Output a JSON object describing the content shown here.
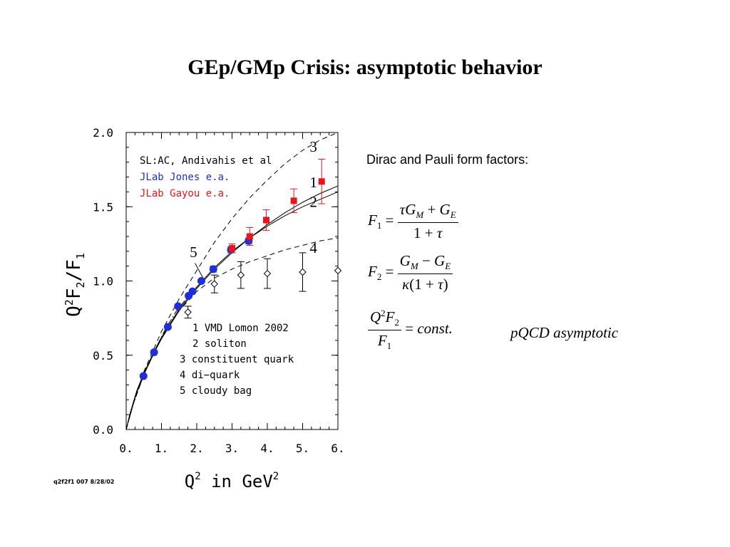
{
  "slide": {
    "title": "GEp/GMp Crisis: asymptotic behavior",
    "footnote": "q2f2f1 007 8/28/02"
  },
  "formulas": {
    "heading": "Dirac and Pauli form factors:",
    "asymptotic_label": "pQCD asymptotic"
  },
  "chart_data": {
    "type": "scatter",
    "xlabel": "Q",
    "xlabel_sup": "2",
    "xlabel_rest": " in GeV",
    "xlabel_sup2": "2",
    "ylabel_main": "Q",
    "ylabel_sup": "2",
    "ylabel_mid": "F",
    "ylabel_sub": "2",
    "ylabel_slash": "/F",
    "ylabel_sub2": "1",
    "xlim": [
      0,
      6
    ],
    "ylim": [
      0,
      2
    ],
    "x_ticks": [
      0,
      1,
      2,
      3,
      4,
      5,
      6
    ],
    "x_tick_labels": [
      "0.",
      "1.",
      "2.",
      "3.",
      "4.",
      "5.",
      "6."
    ],
    "y_ticks": [
      0,
      0.5,
      1.0,
      1.5,
      2.0
    ],
    "y_tick_labels": [
      "0.0",
      "0.5",
      "1.0",
      "1.5",
      "2.0"
    ],
    "legend": [
      {
        "label": "SL:AC, Andivahis et al",
        "color": "#000000"
      },
      {
        "label": "JLab Jones e.a.",
        "color": "#1f2fd8"
      },
      {
        "label": "JLab Gayou e.a.",
        "color": "#e8161c"
      }
    ],
    "model_legend": [
      "1 VMD Lomon 2002",
      "2 soliton",
      "3 constituent quark",
      "4 di−quark",
      "5 cloudy bag"
    ],
    "series": [
      {
        "name": "SL:AC, Andivahis et al",
        "marker": "open-diamond",
        "color": "#000000",
        "x": [
          1.75,
          2.5,
          3.25,
          4.0,
          5.0,
          6.0
        ],
        "y": [
          0.79,
          0.98,
          1.04,
          1.05,
          1.06,
          1.07
        ],
        "err": [
          0.04,
          0.06,
          0.09,
          0.1,
          0.13,
          0
        ]
      },
      {
        "name": "JLab Jones e.a.",
        "marker": "filled-circle",
        "color": "#1f2fd8",
        "x": [
          0.49,
          0.79,
          1.18,
          1.47,
          1.77,
          1.88,
          2.13,
          2.47,
          2.97,
          3.47
        ],
        "y": [
          0.36,
          0.52,
          0.69,
          0.83,
          0.9,
          0.93,
          1.0,
          1.08,
          1.21,
          1.27
        ],
        "err": [
          0.01,
          0.01,
          0.01,
          0.01,
          0.01,
          0.01,
          0.01,
          0.02,
          0.02,
          0.02
        ]
      },
      {
        "name": "JLab Gayou e.a.",
        "marker": "filled-square",
        "color": "#e8161c",
        "x": [
          3.0,
          3.5,
          3.97,
          4.75,
          5.54
        ],
        "y": [
          1.22,
          1.3,
          1.41,
          1.54,
          1.67
        ],
        "err": [
          0.03,
          0.06,
          0.07,
          0.08,
          0.15
        ]
      }
    ],
    "curves": [
      {
        "label": "1",
        "style": "solid",
        "x": [
          0,
          0.1,
          0.3,
          0.5,
          0.8,
          1.0,
          1.5,
          2.0,
          2.5,
          3.0,
          3.5,
          4.0,
          4.5,
          5.0,
          5.5,
          6.0
        ],
        "y": [
          0,
          0.09,
          0.25,
          0.37,
          0.52,
          0.61,
          0.8,
          0.95,
          1.08,
          1.19,
          1.29,
          1.38,
          1.46,
          1.53,
          1.59,
          1.64
        ]
      },
      {
        "label": "2",
        "style": "solid",
        "x": [
          0,
          0.1,
          0.3,
          0.5,
          0.8,
          1.0,
          1.5,
          2.0,
          2.5,
          3.0,
          3.5,
          4.0,
          4.5,
          5.0,
          5.5,
          6.0
        ],
        "y": [
          0,
          0.1,
          0.26,
          0.38,
          0.53,
          0.62,
          0.81,
          0.96,
          1.09,
          1.2,
          1.29,
          1.37,
          1.44,
          1.5,
          1.55,
          1.6
        ]
      },
      {
        "label": "3",
        "style": "dashed",
        "x": [
          0,
          0.2,
          0.5,
          1.0,
          1.5,
          2.0,
          2.5,
          3.0,
          3.5,
          4.0,
          4.5,
          5.0,
          5.5,
          6.0
        ],
        "y": [
          0,
          0.18,
          0.39,
          0.66,
          0.88,
          1.07,
          1.26,
          1.42,
          1.56,
          1.68,
          1.79,
          1.88,
          1.95,
          2.0
        ]
      },
      {
        "label": "4",
        "style": "dashed",
        "x": [
          0,
          0.2,
          0.5,
          1.0,
          1.5,
          2.0,
          2.5,
          3.0,
          3.5,
          4.0,
          4.5,
          5.0,
          5.5,
          6.0
        ],
        "y": [
          0,
          0.17,
          0.37,
          0.62,
          0.8,
          0.93,
          1.02,
          1.08,
          1.13,
          1.17,
          1.21,
          1.24,
          1.27,
          1.29
        ]
      },
      {
        "label": "5",
        "style": "dashdot",
        "x": [
          0,
          0.2,
          0.5,
          0.8,
          1.1,
          1.4,
          1.7,
          2.0,
          2.2
        ],
        "y": [
          0,
          0.17,
          0.37,
          0.53,
          0.67,
          0.79,
          0.88,
          0.95,
          1.0
        ]
      }
    ],
    "curve_labels": [
      {
        "text": "3",
        "x": 5.2,
        "y": 1.87
      },
      {
        "text": "1",
        "x": 5.2,
        "y": 1.63
      },
      {
        "text": "2",
        "x": 5.2,
        "y": 1.5
      },
      {
        "text": "4",
        "x": 5.2,
        "y": 1.19
      },
      {
        "text": "5",
        "x": 1.8,
        "y": 1.16
      }
    ]
  }
}
